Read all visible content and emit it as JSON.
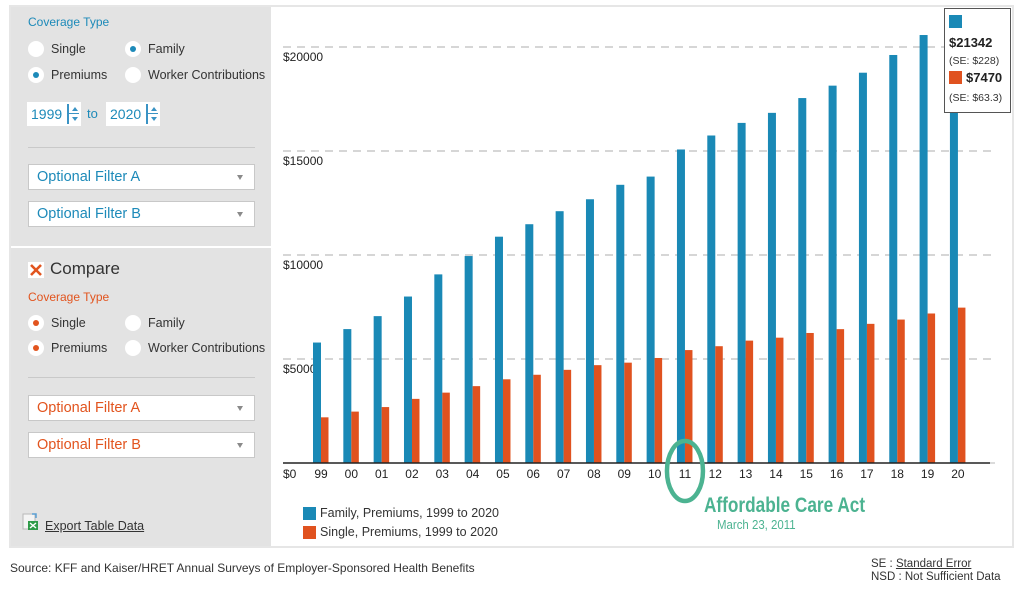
{
  "primary_filters": {
    "heading": "Coverage Type",
    "coverage_options": [
      {
        "label": "Single",
        "selected": false
      },
      {
        "label": "Family",
        "selected": true
      }
    ],
    "measure_options": [
      {
        "label": "Premiums",
        "selected": true
      },
      {
        "label": "Worker Contributions",
        "selected": false
      }
    ],
    "year_from": "1999",
    "year_range_separator": "to",
    "year_to": "2020",
    "filter_a": "Optional Filter A",
    "filter_b": "Optional Filter B"
  },
  "compare": {
    "title": "Compare",
    "heading": "Coverage Type",
    "coverage_options": [
      {
        "label": "Single",
        "selected": true
      },
      {
        "label": "Family",
        "selected": false
      }
    ],
    "measure_options": [
      {
        "label": "Premiums",
        "selected": true
      },
      {
        "label": "Worker Contributions",
        "selected": false
      }
    ],
    "filter_a": "Optional Filter A",
    "filter_b": "Optional Filter B"
  },
  "export_label": "Export Table Data",
  "tooltip": {
    "family_value": "$21342",
    "family_se": "(SE: $228)",
    "single_value": "$7470",
    "single_se": "(SE: $63.3)"
  },
  "annotation": {
    "title": "Affordable Care Act",
    "date": "March 23, 2011",
    "highlight_category": "11"
  },
  "footer": {
    "source": "Source: KFF and Kaiser/HRET Annual Surveys of Employer-Sponsored Health Benefits",
    "se_abbr": "SE",
    "separator": " : ",
    "se_text": "Standard Error",
    "nsd_abbr": "NSD",
    "nsd_text": "Not Sufficient Data"
  },
  "colors": {
    "primary": "#1a89b6",
    "compare": "#e0521f",
    "annotation": "#4cb391",
    "label_primary": "#1d8ab9",
    "label_compare": "#e2541e"
  },
  "chart_data": {
    "type": "bar",
    "title": "",
    "xlabel": "",
    "ylabel": "",
    "categories": [
      "99",
      "00",
      "01",
      "02",
      "03",
      "04",
      "05",
      "06",
      "07",
      "08",
      "09",
      "10",
      "11",
      "12",
      "13",
      "14",
      "15",
      "16",
      "17",
      "18",
      "19",
      "20"
    ],
    "series": [
      {
        "name": "Family, Premiums, 1999 to 2020",
        "color": "#1a89b6",
        "values": [
          5791,
          6438,
          7061,
          8003,
          9068,
          9950,
          10880,
          11480,
          12106,
          12680,
          13375,
          13770,
          15073,
          15745,
          16351,
          16834,
          17545,
          18142,
          18764,
          19616,
          20576,
          21342
        ]
      },
      {
        "name": "Single, Premiums, 1999 to 2020",
        "color": "#e0521f",
        "values": [
          2196,
          2471,
          2689,
          3083,
          3383,
          3695,
          4024,
          4242,
          4479,
          4704,
          4824,
          5049,
          5429,
          5615,
          5884,
          6025,
          6251,
          6435,
          6690,
          6896,
          7188,
          7470
        ]
      }
    ],
    "ytick_values": [
      0,
      5000,
      10000,
      15000,
      20000
    ],
    "ytick_labels": [
      "$0",
      "$5000",
      "$10000",
      "$15000",
      "$20000"
    ],
    "ylim": [
      0,
      22000
    ],
    "grid": true,
    "legend_position": "bottom-left"
  }
}
